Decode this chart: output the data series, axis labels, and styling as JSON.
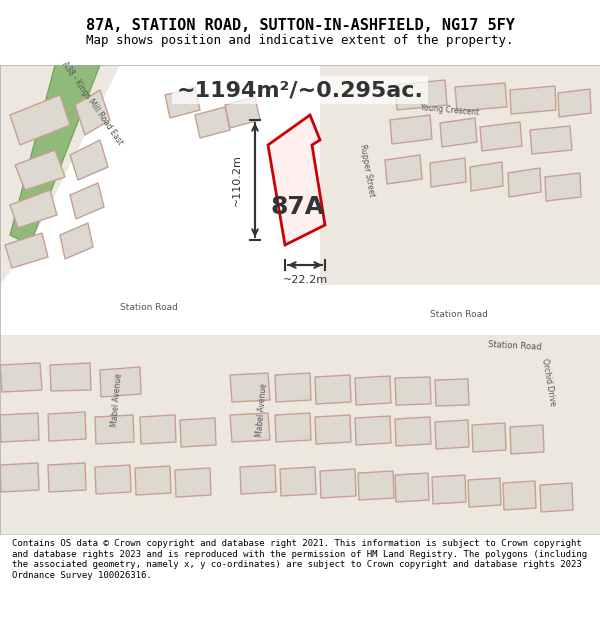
{
  "title_line1": "87A, STATION ROAD, SUTTON-IN-ASHFIELD, NG17 5FY",
  "title_line2": "Map shows position and indicative extent of the property.",
  "area_text": "~1194m²/~0.295ac.",
  "label_87A": "87A",
  "dim_vertical": "~110.2m",
  "dim_horizontal": "~22.2m",
  "footer": "Contains OS data © Crown copyright and database right 2021. This information is subject to Crown copyright and database rights 2023 and is reproduced with the permission of HM Land Registry. The polygons (including the associated geometry, namely x, y co-ordinates) are subject to Crown copyright and database rights 2023 Ordnance Survey 100026316.",
  "bg_map_color": "#f0ede8",
  "road_fill": "#ffffff",
  "building_fill": "#e8e4de",
  "building_stroke": "#c8a090",
  "highlight_fill": "#f5f0e8",
  "green_fill": "#8fba7a",
  "green_stroke": "#6da05a",
  "red_property_stroke": "#cc0000",
  "red_property_fill": "none",
  "annotation_color": "#222222",
  "footer_bg": "#ffffff",
  "title_bg": "#ffffff"
}
